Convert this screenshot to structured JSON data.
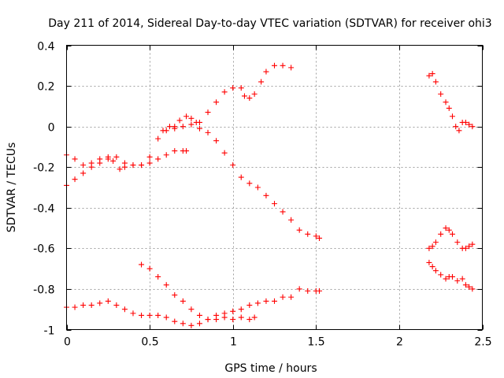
{
  "chart_data": {
    "type": "scatter",
    "title": "Day 211 of 2014, Sidereal Day-to-day VTEC variation (SDTVAR) for receiver ohi3",
    "xlabel": "GPS time / hours",
    "ylabel": "SDTVAR / TECUs",
    "xlim": [
      0,
      2.5
    ],
    "ylim": [
      -1,
      0.4
    ],
    "xticks": [
      0,
      0.5,
      1,
      1.5,
      2,
      2.5
    ],
    "xtick_labels": [
      "0",
      "0.5",
      "1",
      "1.5",
      "2",
      "2.5"
    ],
    "yticks": [
      -1,
      -0.8,
      -0.6,
      -0.4,
      -0.2,
      0,
      0.2,
      0.4
    ],
    "ytick_labels": [
      "-1",
      "-0.8",
      "-0.6",
      "-0.4",
      "-0.2",
      "0",
      "0.2",
      "0.4"
    ],
    "grid": true,
    "marker": "+",
    "color": "#ff0000",
    "series": [
      {
        "points": [
          [
            0.0,
            -0.29
          ],
          [
            0.05,
            -0.26
          ],
          [
            0.1,
            -0.23
          ],
          [
            0.15,
            -0.2
          ],
          [
            0.2,
            -0.18
          ],
          [
            0.25,
            -0.16
          ],
          [
            0.28,
            -0.17
          ],
          [
            0.32,
            -0.21
          ],
          [
            0.35,
            -0.2
          ],
          [
            0.4,
            -0.19
          ],
          [
            0.45,
            -0.19
          ],
          [
            0.5,
            -0.15
          ],
          [
            0.55,
            -0.06
          ],
          [
            0.58,
            -0.02
          ],
          [
            0.62,
            0.0
          ],
          [
            0.65,
            0.0
          ],
          [
            0.68,
            0.03
          ],
          [
            0.72,
            0.05
          ],
          [
            0.75,
            0.04
          ],
          [
            0.78,
            0.02
          ],
          [
            0.8,
            0.02
          ],
          [
            0.85,
            0.07
          ],
          [
            0.9,
            0.12
          ],
          [
            0.95,
            0.17
          ],
          [
            1.0,
            0.19
          ],
          [
            1.05,
            0.19
          ],
          [
            1.07,
            0.15
          ],
          [
            1.1,
            0.14
          ],
          [
            1.13,
            0.16
          ],
          [
            1.17,
            0.22
          ],
          [
            1.2,
            0.27
          ],
          [
            1.25,
            0.3
          ],
          [
            1.3,
            0.3
          ],
          [
            1.35,
            0.29
          ]
        ]
      },
      {
        "points": [
          [
            0.0,
            -0.14
          ],
          [
            0.05,
            -0.16
          ],
          [
            0.1,
            -0.19
          ],
          [
            0.15,
            -0.18
          ],
          [
            0.2,
            -0.16
          ],
          [
            0.25,
            -0.15
          ],
          [
            0.3,
            -0.15
          ],
          [
            0.35,
            -0.18
          ],
          [
            0.4,
            -0.19
          ],
          [
            0.45,
            -0.19
          ],
          [
            0.5,
            -0.18
          ],
          [
            0.55,
            -0.16
          ],
          [
            0.6,
            -0.14
          ],
          [
            0.65,
            -0.12
          ],
          [
            0.7,
            -0.12
          ],
          [
            0.72,
            -0.12
          ]
        ]
      },
      {
        "points": [
          [
            0.6,
            -0.02
          ],
          [
            0.65,
            -0.01
          ],
          [
            0.7,
            0.0
          ],
          [
            0.75,
            0.01
          ],
          [
            0.8,
            -0.01
          ],
          [
            0.85,
            -0.03
          ],
          [
            0.9,
            -0.07
          ],
          [
            0.95,
            -0.13
          ],
          [
            1.0,
            -0.19
          ],
          [
            1.05,
            -0.25
          ],
          [
            1.1,
            -0.28
          ],
          [
            1.15,
            -0.3
          ],
          [
            1.2,
            -0.34
          ],
          [
            1.25,
            -0.38
          ],
          [
            1.3,
            -0.42
          ],
          [
            1.35,
            -0.46
          ],
          [
            1.4,
            -0.51
          ],
          [
            1.45,
            -0.53
          ],
          [
            1.5,
            -0.54
          ],
          [
            1.52,
            -0.55
          ]
        ]
      },
      {
        "points": [
          [
            0.0,
            -0.89
          ],
          [
            0.05,
            -0.89
          ],
          [
            0.1,
            -0.88
          ],
          [
            0.15,
            -0.88
          ],
          [
            0.2,
            -0.87
          ],
          [
            0.25,
            -0.86
          ],
          [
            0.3,
            -0.88
          ],
          [
            0.35,
            -0.9
          ],
          [
            0.4,
            -0.92
          ],
          [
            0.45,
            -0.93
          ],
          [
            0.5,
            -0.93
          ],
          [
            0.55,
            -0.93
          ],
          [
            0.6,
            -0.94
          ],
          [
            0.65,
            -0.96
          ],
          [
            0.7,
            -0.97
          ],
          [
            0.75,
            -0.98
          ],
          [
            0.8,
            -0.97
          ],
          [
            0.85,
            -0.95
          ],
          [
            0.9,
            -0.93
          ],
          [
            0.95,
            -0.92
          ],
          [
            1.0,
            -0.91
          ],
          [
            1.05,
            -0.9
          ],
          [
            1.1,
            -0.88
          ],
          [
            1.15,
            -0.87
          ],
          [
            1.2,
            -0.86
          ],
          [
            1.25,
            -0.86
          ],
          [
            1.3,
            -0.84
          ],
          [
            1.35,
            -0.84
          ],
          [
            1.4,
            -0.8
          ],
          [
            1.45,
            -0.81
          ],
          [
            1.5,
            -0.81
          ],
          [
            1.52,
            -0.81
          ]
        ]
      },
      {
        "points": [
          [
            0.45,
            -0.68
          ],
          [
            0.5,
            -0.7
          ],
          [
            0.55,
            -0.74
          ],
          [
            0.6,
            -0.78
          ],
          [
            0.65,
            -0.83
          ],
          [
            0.7,
            -0.86
          ],
          [
            0.75,
            -0.9
          ],
          [
            0.8,
            -0.93
          ],
          [
            0.85,
            -0.95
          ],
          [
            0.9,
            -0.95
          ],
          [
            0.95,
            -0.94
          ],
          [
            1.0,
            -0.95
          ],
          [
            1.05,
            -0.94
          ],
          [
            1.1,
            -0.95
          ],
          [
            1.13,
            -0.94
          ]
        ]
      },
      {
        "points": [
          [
            2.18,
            0.25
          ],
          [
            2.2,
            0.26
          ],
          [
            2.22,
            0.22
          ],
          [
            2.25,
            0.16
          ],
          [
            2.28,
            0.12
          ],
          [
            2.3,
            0.09
          ],
          [
            2.32,
            0.05
          ],
          [
            2.34,
            0.0
          ],
          [
            2.36,
            -0.02
          ],
          [
            2.38,
            0.02
          ],
          [
            2.4,
            0.02
          ],
          [
            2.42,
            0.01
          ],
          [
            2.44,
            0.0
          ]
        ]
      },
      {
        "points": [
          [
            2.18,
            -0.6
          ],
          [
            2.2,
            -0.59
          ],
          [
            2.22,
            -0.57
          ],
          [
            2.25,
            -0.53
          ],
          [
            2.28,
            -0.5
          ],
          [
            2.3,
            -0.51
          ],
          [
            2.32,
            -0.53
          ],
          [
            2.35,
            -0.57
          ],
          [
            2.38,
            -0.6
          ],
          [
            2.4,
            -0.6
          ],
          [
            2.42,
            -0.59
          ],
          [
            2.44,
            -0.58
          ]
        ]
      },
      {
        "points": [
          [
            2.18,
            -0.67
          ],
          [
            2.2,
            -0.69
          ],
          [
            2.22,
            -0.71
          ],
          [
            2.25,
            -0.73
          ],
          [
            2.28,
            -0.75
          ],
          [
            2.3,
            -0.74
          ],
          [
            2.32,
            -0.74
          ],
          [
            2.35,
            -0.76
          ],
          [
            2.38,
            -0.75
          ],
          [
            2.4,
            -0.78
          ],
          [
            2.42,
            -0.79
          ],
          [
            2.44,
            -0.8
          ]
        ]
      }
    ]
  }
}
